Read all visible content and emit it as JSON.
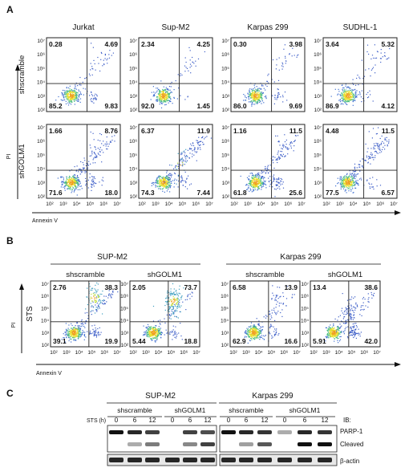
{
  "panelA": {
    "letter": "A",
    "columns": [
      "Jurkat",
      "Sup-M2",
      "Karpas 299",
      "SUDHL-1"
    ],
    "rows": [
      {
        "label": "shscramble",
        "quads": [
          [
            "0.28",
            "4.69",
            "85.2",
            "9.83"
          ],
          [
            "2.34",
            "4.25",
            "92.0",
            "1.45"
          ],
          [
            "0.30",
            "3.98",
            "86.0",
            "9.69"
          ],
          [
            "3.64",
            "5.32",
            "86.9",
            "4.12"
          ]
        ]
      },
      {
        "label": "shGOLM1",
        "quads": [
          [
            "1.66",
            "8.76",
            "71.6",
            "18.0"
          ],
          [
            "6.37",
            "11.9",
            "74.3",
            "7.44"
          ],
          [
            "1.16",
            "11.5",
            "61.8",
            "25.6"
          ],
          [
            "4.48",
            "11.5",
            "77.5",
            "6.57"
          ]
        ]
      }
    ],
    "y_axis": "PI",
    "x_axis": "Annexin V"
  },
  "panelB": {
    "letter": "B",
    "groups": [
      "SUP-M2",
      "Karpas 299"
    ],
    "subgroups": [
      "shscramble",
      "shGOLM1",
      "shscramble",
      "shGOLM1"
    ],
    "row_label": "STS",
    "quads": [
      [
        "2.76",
        "38.3",
        "39.1",
        "19.9"
      ],
      [
        "2.05",
        "73.7",
        "5.44",
        "18.8"
      ],
      [
        "6.58",
        "13.9",
        "62.9",
        "16.6"
      ],
      [
        "13.4",
        "38.6",
        "5.91",
        "42.0"
      ]
    ],
    "y_axis": "PI",
    "x_axis": "Annexin V"
  },
  "axis_ticks": {
    "y": [
      "10⁷",
      "10⁶",
      "10⁵",
      "10⁴",
      "10³",
      "10²"
    ],
    "x": [
      "10²",
      "10³",
      "10⁴",
      "10⁵",
      "10⁶",
      "10⁷"
    ]
  },
  "panelC": {
    "letter": "C",
    "groups": [
      "SUP-M2",
      "Karpas 299"
    ],
    "subgroups": [
      "shscramble",
      "shGOLM1",
      "shscramble",
      "shGOLM1"
    ],
    "sts_label": "STS (h)",
    "timepoints": [
      "0",
      "6",
      "12",
      "0",
      "6",
      "12",
      "0",
      "6",
      "12",
      "0",
      "6",
      "12"
    ],
    "ib_label": "IB:",
    "band_labels": [
      "PARP-1",
      "Cleaved",
      "β-actin"
    ]
  },
  "colors": {
    "density_hot": "#f0c030",
    "density_mid": "#40c080",
    "density_low": "#3050c0"
  }
}
